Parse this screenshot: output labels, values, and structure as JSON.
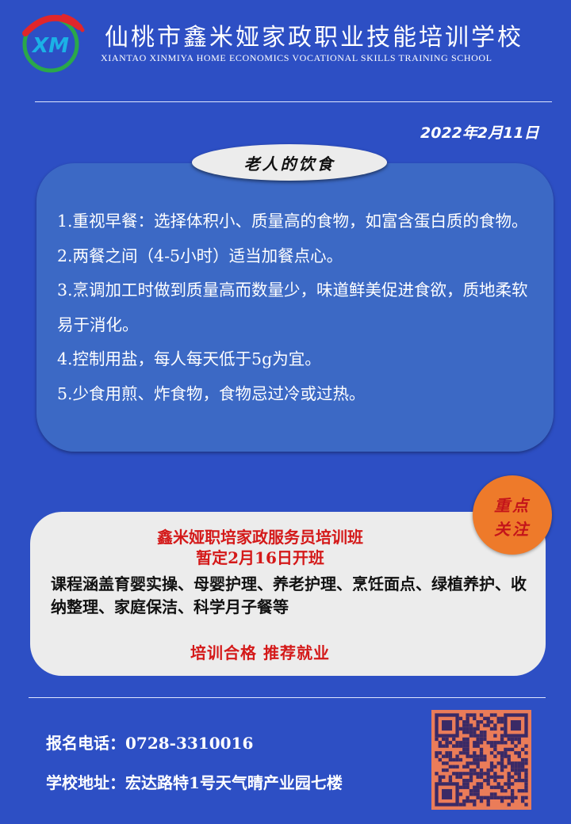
{
  "header": {
    "logo_text": "XM",
    "school_name_cn": "仙桃市鑫米娅家政职业技能培训学校",
    "school_name_en": "XIANTAO XINMIYA HOME ECONOMICS VOCATIONAL SKILLS TRAINING SCHOOL"
  },
  "date": "2022年2月11日",
  "diet": {
    "title": "老人的饮食",
    "items": [
      "1.重视早餐：选择体积小、质量高的食物，如富含蛋白质的食物。",
      "2.两餐之间（4-5小时）适当加餐点心。",
      "3.烹调加工时做到质量高而数量少，味道鲜美促进食欲，质地柔软易于消化。",
      "4.控制用盐，每人每天低于5g为宜。",
      "5.少食用煎、炸食物，食物忌过冷或过热。"
    ]
  },
  "course": {
    "title_line1": "鑫米娅职培家政服务员培训班",
    "title_line2": "暂定2月16日开班",
    "description": "课程涵盖育婴实操、母婴护理、养老护理、烹饪面点、绿植养护、收纳整理、家庭保洁、科学月子餐等",
    "slogan": "培训合格  推荐就业"
  },
  "badge": {
    "line1": "重点",
    "line2": "关注"
  },
  "contact": {
    "phone": "报名电话：0728-3310016",
    "address": "学校地址：宏达路特1号天气晴产业园七楼"
  },
  "icons": {
    "logo": "school-logo",
    "qr": "qr-code"
  },
  "colors": {
    "background": "#2d4fc4",
    "card_blue": "#3c69c5",
    "card_grey": "#ececec",
    "accent_red": "#d41919",
    "badge_orange": "#ee7a2a"
  }
}
